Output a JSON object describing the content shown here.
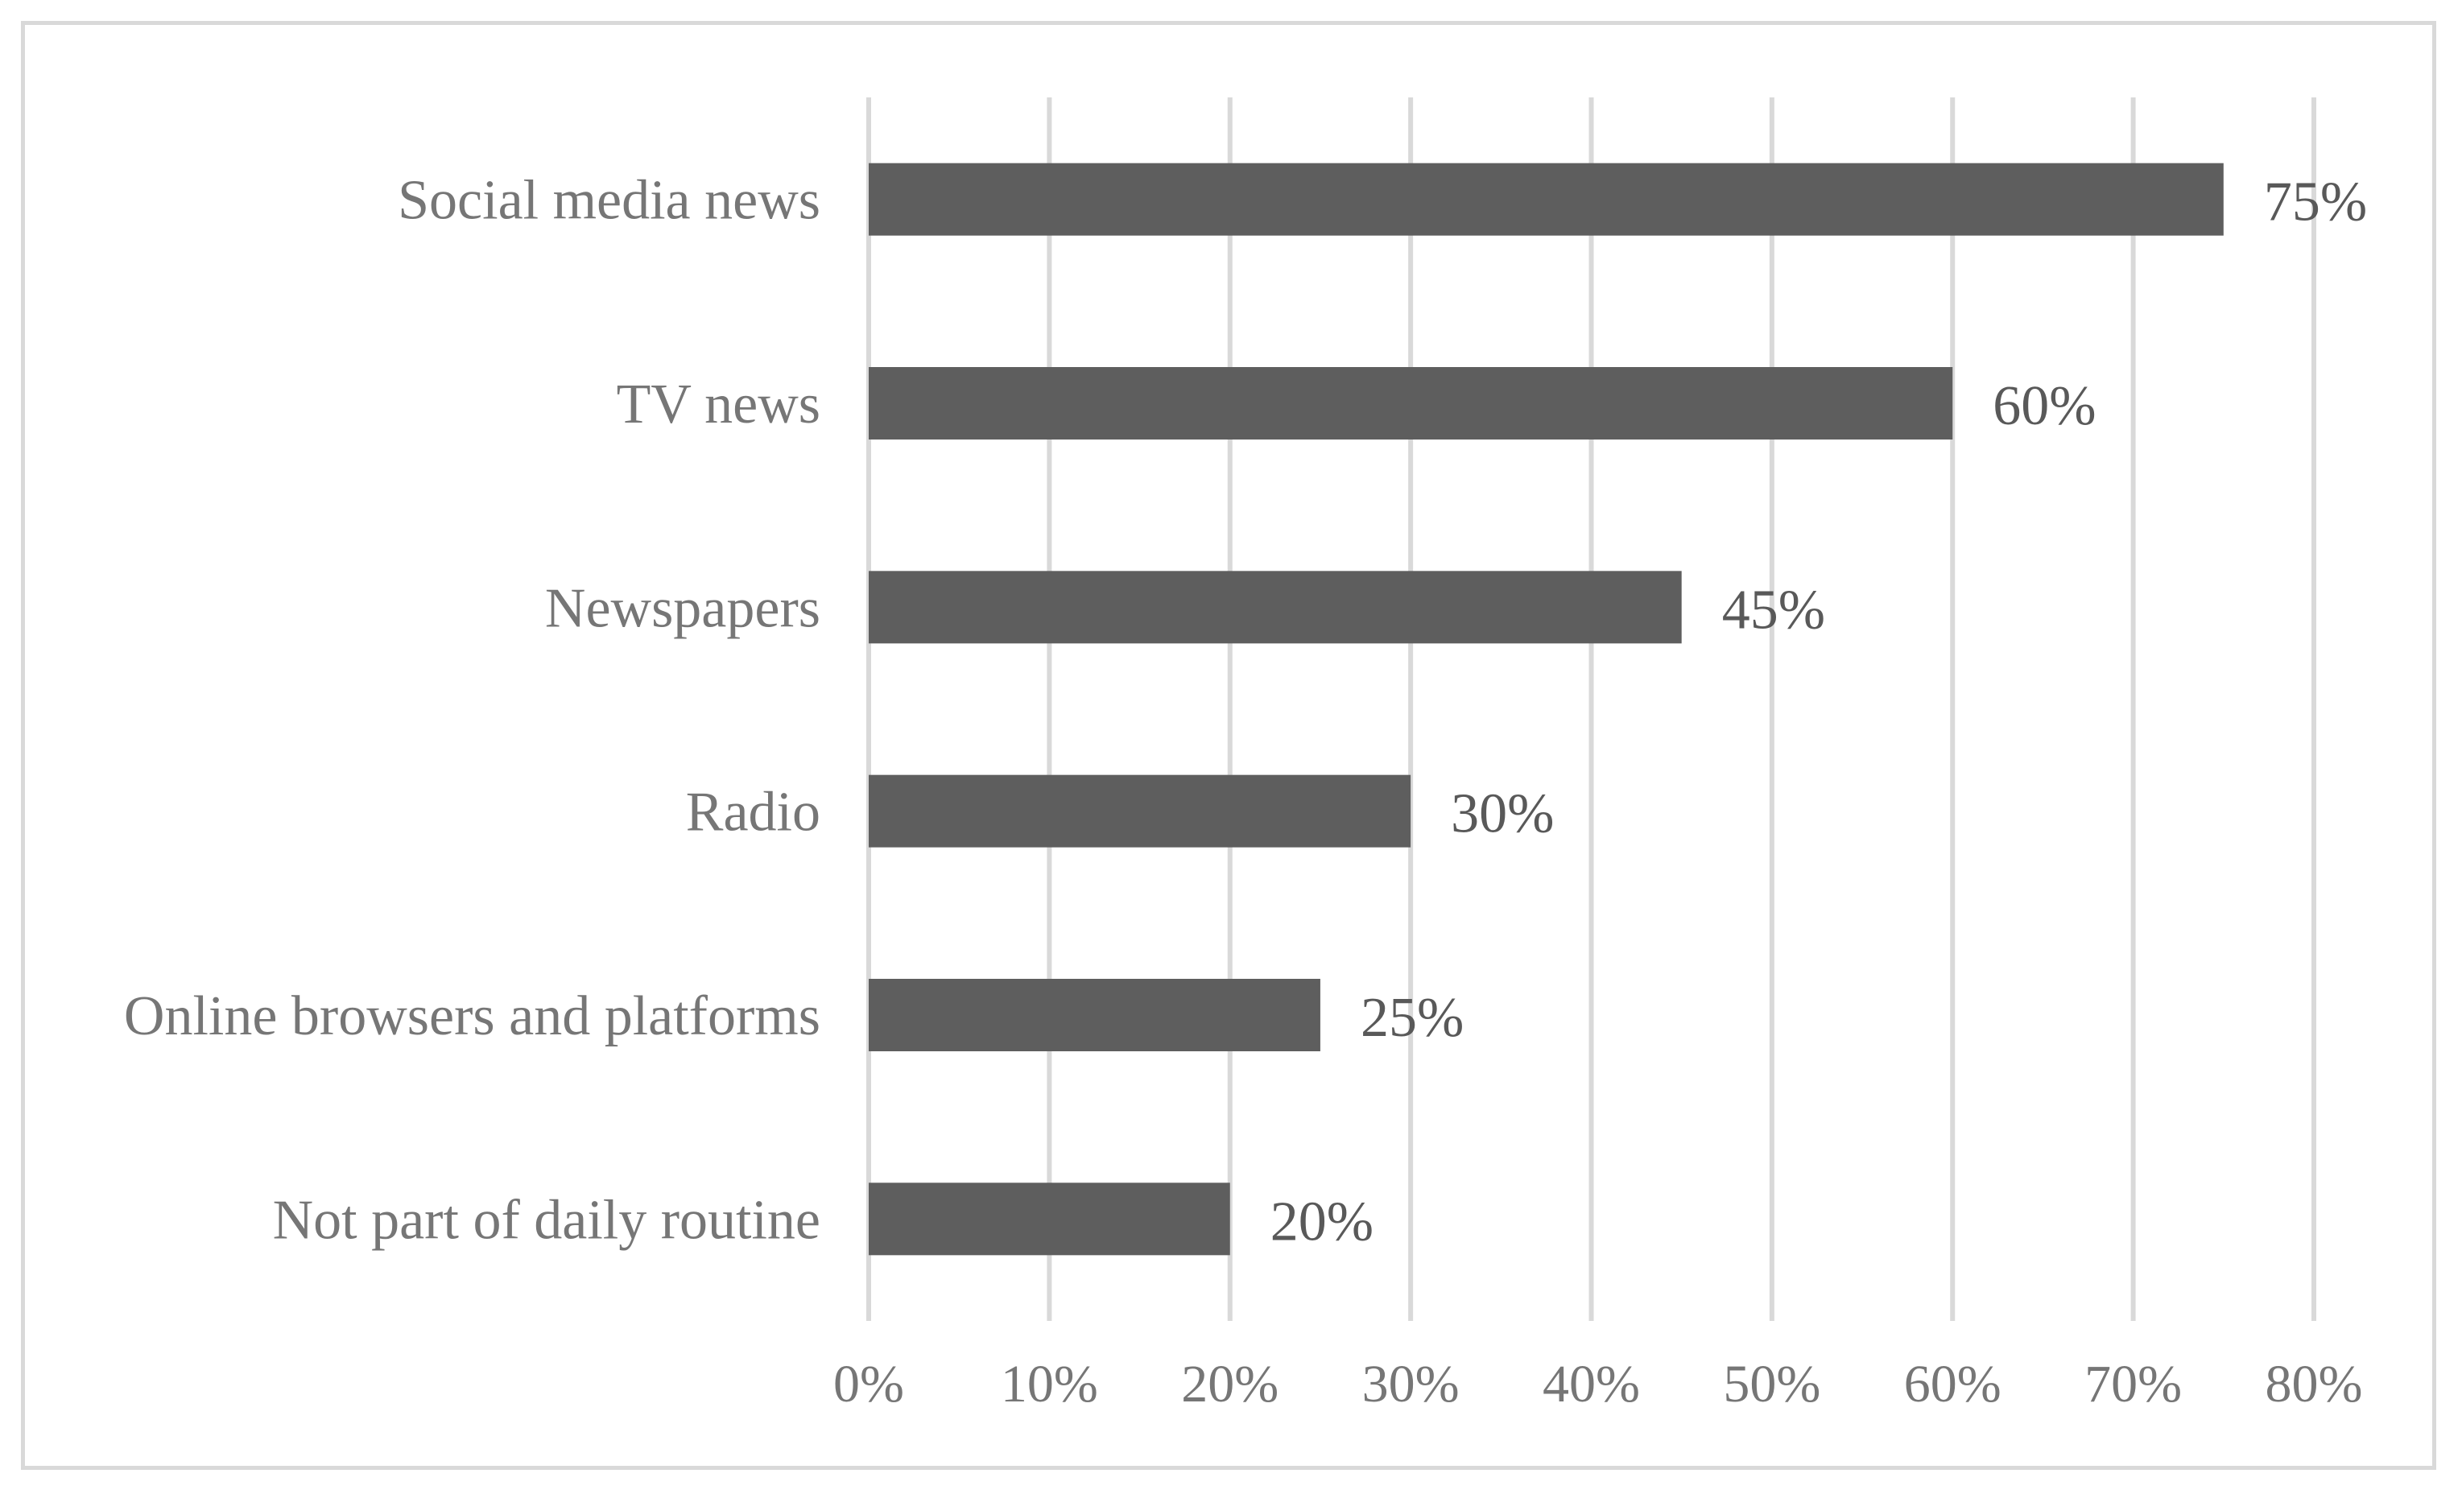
{
  "chart_data": {
    "type": "bar",
    "orientation": "horizontal",
    "categories": [
      "Social media news",
      "TV news",
      "Newspapers",
      "Radio",
      "Online browsers and platforms",
      "Not part of daily routine"
    ],
    "values": [
      75,
      60,
      45,
      30,
      25,
      20
    ],
    "data_labels": [
      "75%",
      "60%",
      "45%",
      "30%",
      "25%",
      "20%"
    ],
    "x_ticks": [
      "0%",
      "10%",
      "20%",
      "30%",
      "40%",
      "50%",
      "60%",
      "70%",
      "80%"
    ],
    "xlim": [
      0,
      80
    ],
    "grid": true,
    "legend": "none",
    "title": "",
    "xlabel": "",
    "ylabel": "",
    "colors": {
      "bar": "#5e5e5e",
      "grid": "#d9d9d9",
      "frame": "#d9d9d9",
      "category_text": "#767676",
      "data_label_text": "#595959"
    }
  }
}
